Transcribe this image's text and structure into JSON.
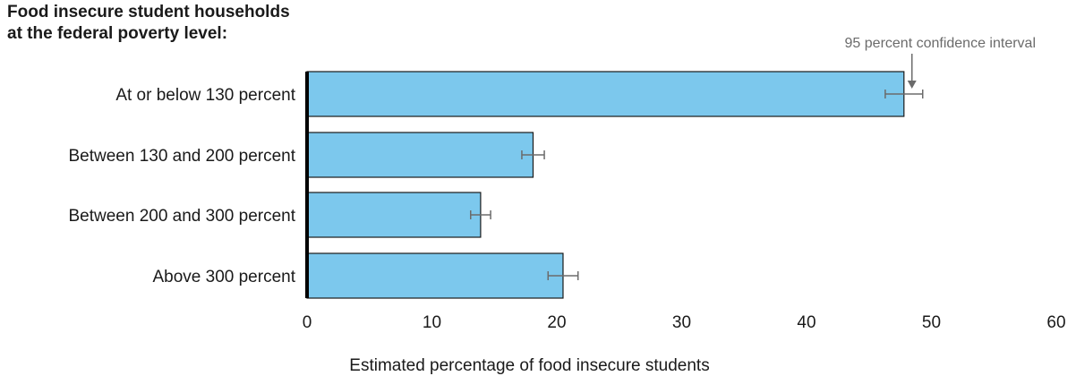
{
  "chart_data": {
    "type": "bar",
    "orientation": "horizontal",
    "title_lines": [
      "Food insecure student households",
      "at the federal poverty level:"
    ],
    "categories": [
      "At or below 130 percent",
      "Between 130 and 200 percent",
      "Between 200 and 300 percent",
      "Above 300 percent"
    ],
    "values": [
      47.8,
      18.1,
      13.9,
      20.5
    ],
    "error_low": [
      46.3,
      17.2,
      13.1,
      19.3
    ],
    "error_high": [
      49.3,
      19.0,
      14.7,
      21.7
    ],
    "xlabel": "Estimated percentage of food insecure students",
    "xlim": [
      0,
      60
    ],
    "xticks": [
      0,
      10,
      20,
      30,
      40,
      50,
      60
    ],
    "annotation": "95 percent confidence interval",
    "grid": false,
    "colors": {
      "bar": "#7cc8ed",
      "bar_stroke": "#1a1a1a",
      "error": "#6b6b6b",
      "annotation": "#6b6b6b",
      "axis": "#000000"
    }
  }
}
